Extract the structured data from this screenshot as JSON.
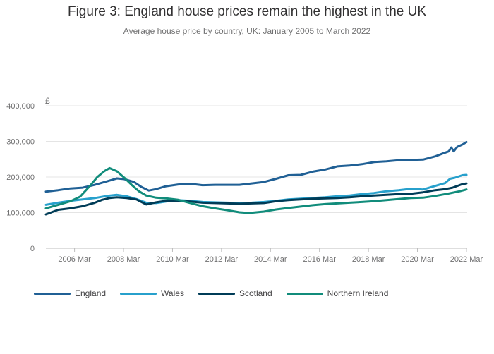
{
  "header": {
    "title": "Figure 3: England house prices remain the highest in the UK",
    "subtitle": "Average house price by country, UK: January 2005 to March 2022"
  },
  "chart_data": {
    "type": "line",
    "ylabel": "£",
    "xlim": [
      2005.0,
      2022.2
    ],
    "ylim": [
      0,
      400000
    ],
    "y_ticks": [
      0,
      100000,
      200000,
      300000,
      400000
    ],
    "y_tick_labels": [
      "0",
      "100,000",
      "200,000",
      "300,000",
      "400,000"
    ],
    "x_ticks": [
      2006.17,
      2008.17,
      2010.17,
      2012.17,
      2014.17,
      2016.17,
      2018.17,
      2020.17,
      2022.17
    ],
    "x_tick_labels": [
      "2006 Mar",
      "2008 Mar",
      "2010 Mar",
      "2012 Mar",
      "2014 Mar",
      "2016 Mar",
      "2018 Mar",
      "2020 Mar",
      "2022 Mar"
    ],
    "grid": true,
    "legend_position": "bottom-left",
    "series": [
      {
        "name": "England",
        "color": "#206095",
        "points": [
          [
            2005.0,
            159000
          ],
          [
            2005.5,
            163000
          ],
          [
            2006.0,
            168000
          ],
          [
            2006.5,
            170000
          ],
          [
            2007.0,
            178000
          ],
          [
            2007.5,
            188000
          ],
          [
            2007.9,
            196000
          ],
          [
            2008.2,
            194000
          ],
          [
            2008.6,
            186000
          ],
          [
            2008.9,
            172000
          ],
          [
            2009.2,
            162000
          ],
          [
            2009.5,
            166000
          ],
          [
            2009.9,
            174000
          ],
          [
            2010.4,
            179000
          ],
          [
            2010.9,
            181000
          ],
          [
            2011.4,
            177000
          ],
          [
            2011.9,
            178000
          ],
          [
            2012.4,
            178000
          ],
          [
            2012.9,
            178000
          ],
          [
            2013.4,
            182000
          ],
          [
            2013.9,
            186000
          ],
          [
            2014.4,
            195000
          ],
          [
            2014.9,
            205000
          ],
          [
            2015.4,
            206000
          ],
          [
            2015.9,
            215000
          ],
          [
            2016.4,
            221000
          ],
          [
            2016.9,
            230000
          ],
          [
            2017.4,
            232000
          ],
          [
            2017.9,
            236000
          ],
          [
            2018.4,
            242000
          ],
          [
            2018.9,
            244000
          ],
          [
            2019.4,
            247000
          ],
          [
            2019.9,
            248000
          ],
          [
            2020.4,
            249000
          ],
          [
            2020.9,
            258000
          ],
          [
            2021.2,
            266000
          ],
          [
            2021.45,
            272000
          ],
          [
            2021.55,
            283000
          ],
          [
            2021.65,
            272000
          ],
          [
            2021.8,
            285000
          ],
          [
            2022.0,
            291000
          ],
          [
            2022.17,
            298000
          ]
        ]
      },
      {
        "name": "Wales",
        "color": "#27a0cc",
        "points": [
          [
            2005.0,
            122000
          ],
          [
            2005.5,
            128000
          ],
          [
            2006.0,
            133000
          ],
          [
            2006.5,
            137000
          ],
          [
            2007.0,
            141000
          ],
          [
            2007.5,
            147000
          ],
          [
            2007.9,
            150000
          ],
          [
            2008.3,
            146000
          ],
          [
            2008.7,
            138000
          ],
          [
            2009.1,
            128000
          ],
          [
            2009.5,
            127000
          ],
          [
            2009.9,
            131000
          ],
          [
            2010.4,
            135000
          ],
          [
            2010.9,
            133000
          ],
          [
            2011.4,
            130000
          ],
          [
            2011.9,
            129000
          ],
          [
            2012.4,
            128000
          ],
          [
            2012.9,
            127000
          ],
          [
            2013.4,
            128000
          ],
          [
            2013.9,
            130000
          ],
          [
            2014.4,
            133000
          ],
          [
            2014.9,
            137000
          ],
          [
            2015.4,
            139000
          ],
          [
            2015.9,
            141000
          ],
          [
            2016.4,
            143000
          ],
          [
            2016.9,
            146000
          ],
          [
            2017.4,
            148000
          ],
          [
            2017.9,
            152000
          ],
          [
            2018.4,
            155000
          ],
          [
            2018.9,
            160000
          ],
          [
            2019.4,
            163000
          ],
          [
            2019.9,
            167000
          ],
          [
            2020.4,
            165000
          ],
          [
            2020.9,
            175000
          ],
          [
            2021.3,
            183000
          ],
          [
            2021.5,
            195000
          ],
          [
            2021.7,
            198000
          ],
          [
            2022.0,
            205000
          ],
          [
            2022.17,
            206000
          ]
        ]
      },
      {
        "name": "Scotland",
        "color": "#003c57",
        "points": [
          [
            2005.0,
            95000
          ],
          [
            2005.5,
            108000
          ],
          [
            2006.0,
            112000
          ],
          [
            2006.5,
            118000
          ],
          [
            2007.0,
            128000
          ],
          [
            2007.3,
            136000
          ],
          [
            2007.6,
            141000
          ],
          [
            2007.9,
            143000
          ],
          [
            2008.3,
            141000
          ],
          [
            2008.7,
            137000
          ],
          [
            2009.1,
            123000
          ],
          [
            2009.5,
            129000
          ],
          [
            2009.9,
            133000
          ],
          [
            2010.4,
            133000
          ],
          [
            2010.9,
            131000
          ],
          [
            2011.4,
            128000
          ],
          [
            2011.9,
            127000
          ],
          [
            2012.4,
            126000
          ],
          [
            2012.9,
            125000
          ],
          [
            2013.4,
            126000
          ],
          [
            2013.9,
            127000
          ],
          [
            2014.4,
            132000
          ],
          [
            2014.9,
            135000
          ],
          [
            2015.4,
            137000
          ],
          [
            2015.9,
            139000
          ],
          [
            2016.4,
            140000
          ],
          [
            2016.9,
            141000
          ],
          [
            2017.4,
            143000
          ],
          [
            2017.9,
            146000
          ],
          [
            2018.4,
            148000
          ],
          [
            2018.9,
            150000
          ],
          [
            2019.4,
            152000
          ],
          [
            2019.9,
            153000
          ],
          [
            2020.4,
            157000
          ],
          [
            2020.9,
            163000
          ],
          [
            2021.3,
            166000
          ],
          [
            2021.6,
            170000
          ],
          [
            2022.0,
            180000
          ],
          [
            2022.17,
            182000
          ]
        ]
      },
      {
        "name": "Northern Ireland",
        "color": "#118c7b",
        "points": [
          [
            2005.0,
            112000
          ],
          [
            2005.5,
            122000
          ],
          [
            2006.0,
            132000
          ],
          [
            2006.4,
            145000
          ],
          [
            2006.8,
            175000
          ],
          [
            2007.1,
            200000
          ],
          [
            2007.4,
            217000
          ],
          [
            2007.6,
            225000
          ],
          [
            2007.9,
            216000
          ],
          [
            2008.2,
            198000
          ],
          [
            2008.5,
            178000
          ],
          [
            2008.8,
            160000
          ],
          [
            2009.1,
            148000
          ],
          [
            2009.5,
            142000
          ],
          [
            2009.9,
            140000
          ],
          [
            2010.4,
            136000
          ],
          [
            2010.9,
            127000
          ],
          [
            2011.4,
            118000
          ],
          [
            2011.9,
            112000
          ],
          [
            2012.4,
            107000
          ],
          [
            2012.9,
            101000
          ],
          [
            2013.3,
            99000
          ],
          [
            2013.9,
            103000
          ],
          [
            2014.4,
            109000
          ],
          [
            2014.9,
            113000
          ],
          [
            2015.4,
            117000
          ],
          [
            2015.9,
            121000
          ],
          [
            2016.4,
            124000
          ],
          [
            2016.9,
            126000
          ],
          [
            2017.4,
            128000
          ],
          [
            2017.9,
            130000
          ],
          [
            2018.4,
            132000
          ],
          [
            2018.9,
            135000
          ],
          [
            2019.4,
            138000
          ],
          [
            2019.9,
            141000
          ],
          [
            2020.4,
            142000
          ],
          [
            2020.9,
            147000
          ],
          [
            2021.4,
            153000
          ],
          [
            2021.9,
            160000
          ],
          [
            2022.17,
            165000
          ]
        ]
      }
    ]
  }
}
